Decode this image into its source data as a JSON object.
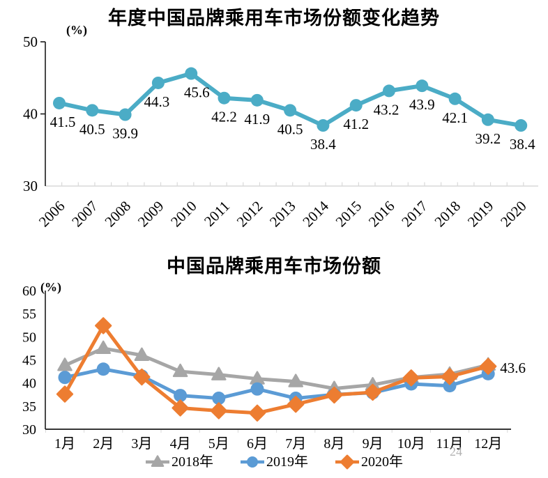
{
  "page": {
    "page_number": "24"
  },
  "chart_data": [
    {
      "type": "line",
      "title": "年度中国品牌乘用车市场份额变化趋势",
      "unit_label": "(%)",
      "categories": [
        "2006",
        "2007",
        "2008",
        "2009",
        "2010",
        "2011",
        "2012",
        "2013",
        "2014",
        "2015",
        "2016",
        "2017",
        "2018",
        "2019",
        "2020"
      ],
      "values": [
        41.5,
        40.5,
        39.9,
        44.3,
        45.6,
        42.2,
        41.9,
        40.5,
        38.4,
        41.2,
        43.2,
        43.9,
        42.1,
        39.2,
        38.4
      ],
      "data_labels": [
        "41.5",
        "40.5",
        "39.9",
        "44.3",
        "45.6",
        "42.2",
        "41.9",
        "40.5",
        "38.4",
        "41.2",
        "43.2",
        "43.9",
        "42.1",
        "39.2",
        "38.4"
      ],
      "series_color": "#4BACC6",
      "ylim": [
        30,
        50
      ],
      "yticks": [
        50,
        40,
        30
      ],
      "grid": false,
      "legend": "none",
      "marker": "circle"
    },
    {
      "type": "line",
      "title": "中国品牌乘用车市场份额",
      "unit_label": "(%)",
      "categories": [
        "1月",
        "2月",
        "3月",
        "4月",
        "5月",
        "6月",
        "7月",
        "8月",
        "9月",
        "10月",
        "11月",
        "12月"
      ],
      "series": [
        {
          "name": "2018年",
          "color": "#A6A6A6",
          "marker": "triangle",
          "values": [
            43.8,
            47.5,
            46.0,
            42.5,
            41.8,
            40.9,
            40.3,
            38.8,
            39.6,
            41.2,
            41.9,
            43.9
          ]
        },
        {
          "name": "2019年",
          "color": "#5B9BD5",
          "marker": "circle",
          "values": [
            41.2,
            43.0,
            41.5,
            37.3,
            36.7,
            38.7,
            36.7,
            37.5,
            37.9,
            39.8,
            39.4,
            42.0
          ]
        },
        {
          "name": "2020年",
          "color": "#ED7D31",
          "marker": "diamond",
          "values": [
            37.6,
            52.4,
            41.3,
            34.6,
            34.0,
            33.5,
            35.4,
            37.4,
            38.0,
            41.1,
            41.4,
            43.6
          ]
        }
      ],
      "ylim": [
        30,
        60
      ],
      "yticks": [
        60,
        55,
        50,
        45,
        40,
        35,
        30
      ],
      "grid": false,
      "legend": "bottom",
      "annotation": {
        "text": "43.6",
        "series": "2020年",
        "point_index": 11
      }
    }
  ]
}
